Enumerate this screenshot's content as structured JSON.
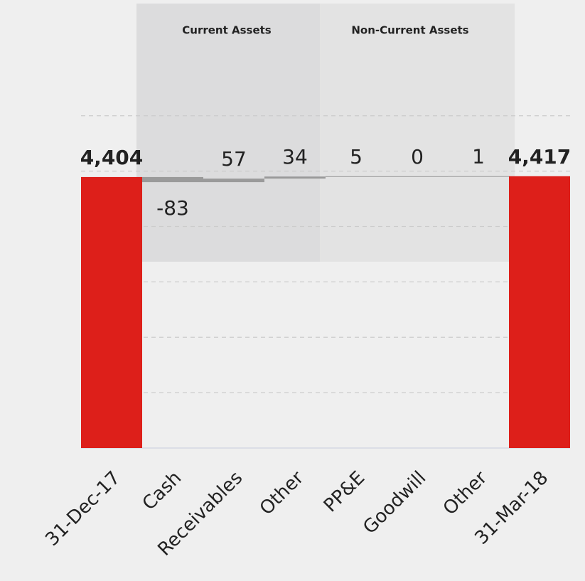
{
  "chart_data": {
    "type": "waterfall",
    "categories": [
      "31-Dec-17",
      "Cash",
      "Receivables",
      "Other",
      "PP&E",
      "Goodwill",
      "Other",
      "31-Mar-18"
    ],
    "values": [
      4404,
      -83,
      57,
      34,
      5,
      0,
      1,
      4417
    ],
    "value_labels": [
      "4,404",
      "-83",
      "57",
      "34",
      "5",
      "0",
      "1",
      "4,417"
    ],
    "measure": [
      "absolute",
      "relative",
      "relative",
      "relative",
      "relative",
      "relative",
      "relative",
      "absolute"
    ],
    "total_color": "#dd1f1a",
    "delta_color": "#9a9a9a",
    "groups": [
      {
        "label": "Current Assets",
        "span": [
          1,
          3
        ],
        "color": "#dcdcdd"
      },
      {
        "label": "Non-Current Assets",
        "span": [
          4,
          6
        ],
        "color": "#e3e3e3"
      }
    ],
    "ylim": [
      0,
      7200
    ],
    "yticks": [
      0,
      900,
      1800,
      2700,
      3600,
      4500,
      5400
    ],
    "grid": true
  }
}
